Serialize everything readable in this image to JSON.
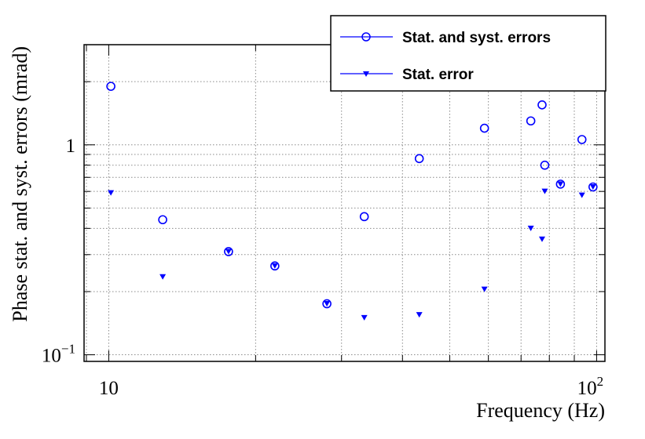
{
  "chart_data": {
    "type": "scatter",
    "title": "",
    "xlabel": "Frequency (Hz)",
    "ylabel": "Phase stat. and syst. errors (mrad)",
    "x_scale": "log",
    "y_scale": "log",
    "xlim": [
      8.9,
      104
    ],
    "ylim": [
      0.093,
      3.0
    ],
    "grid": true,
    "legend_position": "top-right",
    "x_tick_labels": [
      {
        "value": 10,
        "base": "10",
        "exp": ""
      },
      {
        "value": 100,
        "base": "10",
        "exp": "2"
      }
    ],
    "y_tick_labels": [
      {
        "value": 0.1,
        "base": "10",
        "exp": "−1"
      },
      {
        "value": 1,
        "base": "1",
        "exp": ""
      }
    ],
    "series": [
      {
        "name": "Stat. and syst. errors",
        "marker": "open-circle",
        "color": "#0000ff",
        "points": [
          {
            "x": 10.1,
            "y": 1.9
          },
          {
            "x": 12.9,
            "y": 0.44
          },
          {
            "x": 17.6,
            "y": 0.31
          },
          {
            "x": 21.9,
            "y": 0.265
          },
          {
            "x": 28.0,
            "y": 0.175
          },
          {
            "x": 33.4,
            "y": 0.455
          },
          {
            "x": 43.3,
            "y": 0.86
          },
          {
            "x": 58.9,
            "y": 1.2
          },
          {
            "x": 73.3,
            "y": 1.3
          },
          {
            "x": 77.3,
            "y": 1.55
          },
          {
            "x": 78.3,
            "y": 0.8
          },
          {
            "x": 84.3,
            "y": 0.65
          },
          {
            "x": 93.3,
            "y": 1.06
          },
          {
            "x": 98.3,
            "y": 0.63
          }
        ]
      },
      {
        "name": "Stat. error",
        "marker": "filled-triangle-down",
        "color": "#0000ff",
        "points": [
          {
            "x": 10.1,
            "y": 0.59
          },
          {
            "x": 12.9,
            "y": 0.235
          },
          {
            "x": 17.6,
            "y": 0.31
          },
          {
            "x": 21.9,
            "y": 0.265
          },
          {
            "x": 28.0,
            "y": 0.175
          },
          {
            "x": 33.4,
            "y": 0.15
          },
          {
            "x": 43.3,
            "y": 0.155
          },
          {
            "x": 58.9,
            "y": 0.205
          },
          {
            "x": 73.3,
            "y": 0.4
          },
          {
            "x": 77.3,
            "y": 0.355
          },
          {
            "x": 78.3,
            "y": 0.6
          },
          {
            "x": 84.3,
            "y": 0.65
          },
          {
            "x": 93.3,
            "y": 0.575
          },
          {
            "x": 98.3,
            "y": 0.63
          }
        ]
      }
    ]
  }
}
